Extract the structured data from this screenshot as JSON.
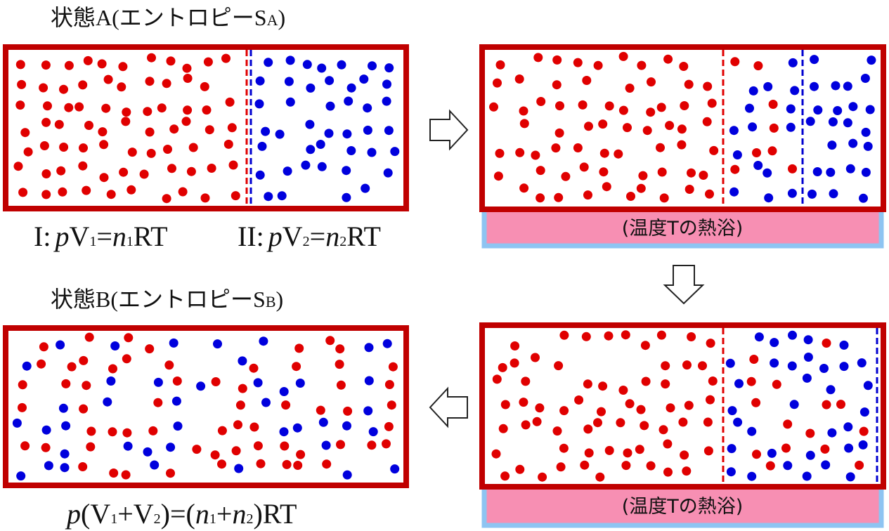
{
  "state_a": {
    "title": [
      "状態A(エントロピーS",
      "A",
      ")"
    ]
  },
  "equation_1": [
    "I:",
    "p",
    "V",
    "1",
    "=",
    "n",
    "1",
    "RT"
  ],
  "equation_2": [
    "II:",
    "p",
    "V",
    "2",
    "=",
    "n",
    "2",
    "RT"
  ],
  "heat_bath_1": "(温度Tの熱浴)",
  "heat_bath_2": "(温度Tの熱浴)",
  "state_b": {
    "title": [
      "状態B(エントロピーS",
      "B",
      ")"
    ]
  },
  "equation_3": [
    "p",
    "(V",
    "1",
    "+",
    "V",
    "2",
    ")=(",
    "n",
    "1",
    "+",
    "n",
    "2",
    ")RT"
  ]
}
